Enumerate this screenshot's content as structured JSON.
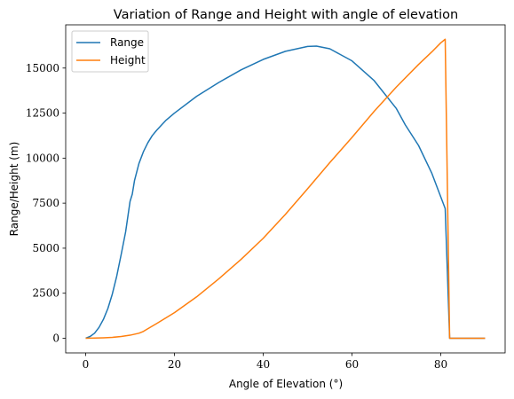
{
  "chart_data": {
    "type": "line",
    "title": "Variation of Range and Height with angle of elevation",
    "xlabel": "Angle of Elevation (°)",
    "ylabel": "Range/Height (m)",
    "xlim": [
      -4.5,
      94.5
    ],
    "ylim": [
      -812,
      17400
    ],
    "xticks": [
      0,
      20,
      40,
      60,
      80
    ],
    "yticks": [
      0,
      2500,
      5000,
      7500,
      10000,
      12500,
      15000
    ],
    "grid": false,
    "legend_position": "top-left",
    "series": [
      {
        "name": "Range",
        "color": "#1f77b4",
        "x": [
          0,
          1,
          2,
          3,
          4,
          5,
          6,
          7,
          8,
          9,
          10,
          10.5,
          11,
          12,
          13,
          14,
          15,
          16,
          18,
          20,
          25,
          30,
          35,
          40,
          45,
          50,
          52,
          55,
          60,
          65,
          70,
          72,
          75,
          78,
          81,
          82,
          83,
          85,
          88,
          90
        ],
        "y": [
          0,
          100,
          280,
          600,
          1050,
          1650,
          2450,
          3450,
          4650,
          5900,
          7600,
          8000,
          8750,
          9700,
          10350,
          10850,
          11250,
          11550,
          12080,
          12500,
          13430,
          14200,
          14900,
          15480,
          15930,
          16200,
          16220,
          16070,
          15400,
          14300,
          12750,
          11850,
          10700,
          9150,
          7200,
          0,
          0,
          0,
          0,
          0
        ]
      },
      {
        "name": "Height",
        "color": "#ff7f0e",
        "x": [
          0,
          2,
          4,
          6,
          8,
          10,
          12,
          13,
          14,
          16,
          18,
          20,
          25,
          30,
          35,
          40,
          45,
          50,
          55,
          60,
          65,
          70,
          75,
          78,
          80,
          81,
          82,
          83,
          85,
          88,
          90
        ],
        "y": [
          0,
          10,
          25,
          50,
          100,
          170,
          280,
          380,
          530,
          820,
          1120,
          1420,
          2300,
          3300,
          4380,
          5550,
          6880,
          8300,
          9750,
          11150,
          12600,
          13950,
          15200,
          15900,
          16400,
          16600,
          0,
          0,
          0,
          0,
          0
        ]
      }
    ]
  }
}
